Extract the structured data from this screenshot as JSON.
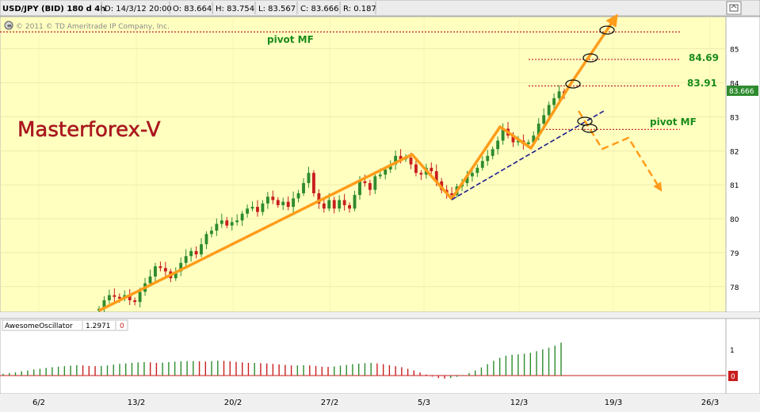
{
  "header": {
    "symbol": "USD/JPY (BID) 180 d 4h",
    "date": "D: 14/3/12 20:00",
    "open": "O: 83.664",
    "high": "H: 83.754",
    "low": "L: 83.567",
    "close": "C: 83.666",
    "range": "R: 0.187"
  },
  "copyright": "© 2011 © TD Ameritrade IP Company, Inc.",
  "watermark": "Masterforex-V",
  "annotations": {
    "pivot_top": "pivot MF",
    "level_1": "84.69",
    "level_2": "83.91",
    "pivot_right": "pivot MF"
  },
  "price_tag": "83.666",
  "oscillator": {
    "name": "AwesomeOscillator",
    "value": "1.2971",
    "zero_tag": "0"
  },
  "colors": {
    "panel_bg": "#ffffc0",
    "up": "#2e8b2e",
    "down": "#c81e1e",
    "trend": "#ff9c1a",
    "support": "#1c1c8c",
    "level_line": "#c83232",
    "watermark": "#b0141e",
    "label_green": "#1a8c1a"
  },
  "icons": [
    "menu-icon",
    "settings-icon"
  ],
  "chart_data": [
    {
      "type": "candlestick",
      "title": "USD/JPY (BID) 180 d 4h",
      "x_ticks": [
        "6/2",
        "13/2",
        "20/2",
        "27/2",
        "5/3",
        "12/3",
        "19/3",
        "26/3"
      ],
      "y_ticks": [
        78,
        79,
        80,
        81,
        82,
        83,
        84,
        85
      ],
      "ylim": [
        77.25,
        85.95
      ],
      "last_price": 83.666,
      "levels": [
        {
          "label": "pivot MF",
          "value": 85.5
        },
        {
          "label": "84.69",
          "value": 84.69
        },
        {
          "label": "83.91",
          "value": 83.91
        },
        {
          "label": "pivot MF",
          "value": 82.63
        }
      ],
      "closes": [
        77.35,
        77.6,
        77.75,
        77.7,
        77.65,
        77.75,
        77.6,
        77.55,
        77.85,
        78.1,
        78.3,
        78.6,
        78.55,
        78.45,
        78.25,
        78.45,
        78.7,
        78.9,
        79.05,
        78.95,
        79.25,
        79.55,
        79.65,
        79.85,
        79.95,
        79.8,
        79.9,
        79.95,
        80.15,
        80.3,
        80.35,
        80.2,
        80.45,
        80.65,
        80.55,
        80.4,
        80.5,
        80.35,
        80.6,
        80.75,
        81.05,
        81.35,
        80.75,
        80.45,
        80.3,
        80.55,
        80.3,
        80.55,
        80.4,
        80.3,
        80.7,
        81.1,
        81.05,
        80.85,
        81.25,
        81.3,
        81.45,
        81.6,
        81.85,
        81.75,
        81.8,
        81.6,
        81.35,
        81.3,
        81.5,
        81.4,
        81.1,
        80.85,
        80.75,
        80.7,
        80.95,
        81.05,
        81.25,
        81.35,
        81.5,
        81.7,
        81.85,
        82.05,
        82.3,
        82.65,
        82.45,
        82.25,
        82.3,
        82.2,
        82.25,
        82.45,
        82.8,
        83.05,
        83.35,
        83.55,
        83.75,
        83.666
      ],
      "ao_values": [
        0.07,
        0.1,
        0.13,
        0.17,
        0.2,
        0.24,
        0.27,
        0.3,
        0.33,
        0.35,
        0.37,
        0.39,
        0.41,
        0.4,
        0.38,
        0.37,
        0.38,
        0.4,
        0.43,
        0.46,
        0.48,
        0.5,
        0.52,
        0.53,
        0.52,
        0.5,
        0.51,
        0.53,
        0.55,
        0.56,
        0.57,
        0.57,
        0.56,
        0.55,
        0.57,
        0.59,
        0.58,
        0.56,
        0.54,
        0.52,
        0.5,
        0.5,
        0.49,
        0.48,
        0.46,
        0.44,
        0.42,
        0.4,
        0.4,
        0.41,
        0.4,
        0.38,
        0.35,
        0.34,
        0.36,
        0.39,
        0.42,
        0.45,
        0.47,
        0.49,
        0.5,
        0.48,
        0.45,
        0.41,
        0.37,
        0.33,
        0.27,
        0.2,
        0.12,
        0.04,
        -0.04,
        -0.1,
        -0.12,
        -0.1,
        -0.05,
        0.02,
        0.1,
        0.2,
        0.32,
        0.45,
        0.58,
        0.7,
        0.78,
        0.82,
        0.84,
        0.86,
        0.9,
        0.96,
        1.03,
        1.1,
        1.18,
        1.2971
      ]
    }
  ]
}
